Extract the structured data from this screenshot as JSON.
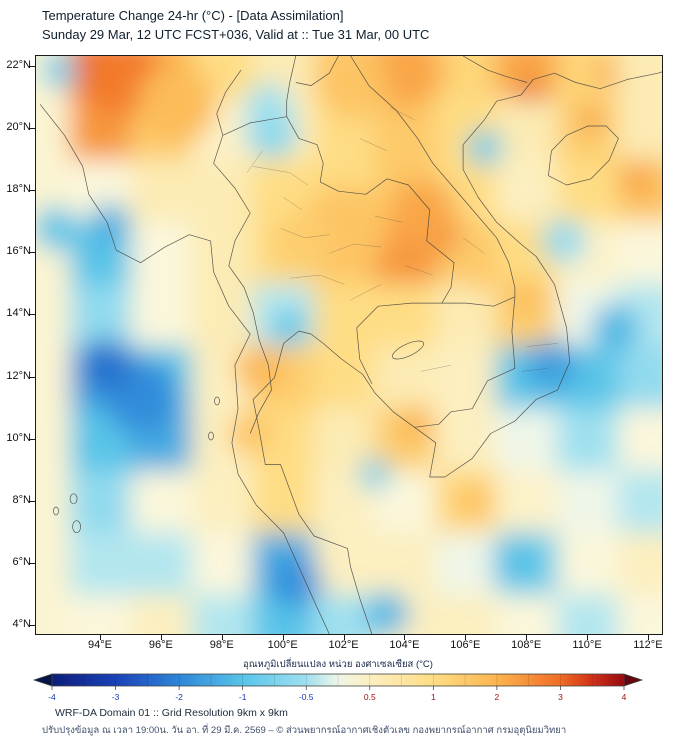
{
  "header": {
    "title": "Temperature Change 24-hr (°C) - [Data Assimilation]",
    "subtitle": "Sunday 29 Mar, 12 UTC FCST+036, Valid at :: Tue 31 Mar, 00 UTC"
  },
  "axes": {
    "lat_labels": [
      "22°N",
      "20°N",
      "18°N",
      "16°N",
      "14°N",
      "12°N",
      "10°N",
      "8°N",
      "6°N",
      "4°N"
    ],
    "lon_labels": [
      "94°E",
      "96°E",
      "98°E",
      "100°E",
      "102°E",
      "104°E",
      "106°E",
      "108°E",
      "110°E",
      "112°E"
    ]
  },
  "colorbar": {
    "title": "อุณหภูมิเปลี่ยนแปลง หน่วย องศาเซลเซียส (°C)",
    "tick_values": [
      -4,
      -3,
      -2,
      -1,
      -0.5,
      0.5,
      1,
      2,
      3,
      4
    ],
    "tick_labels": [
      "-4",
      "-3",
      "-2",
      "-1",
      "-0.5",
      "0.5",
      "1",
      "2",
      "3",
      "4"
    ],
    "min": -4,
    "max": 4,
    "negative_label_color": "#1535b5",
    "positive_label_color": "#a01010",
    "stops": [
      [
        -4,
        "#0b1e7a"
      ],
      [
        -3,
        "#1a41b8"
      ],
      [
        -2,
        "#2d86d8"
      ],
      [
        -1,
        "#58c4e8"
      ],
      [
        -0.5,
        "#9fe0ef"
      ],
      [
        -0.15,
        "#e2f4f0"
      ],
      [
        0.15,
        "#fbf8e0"
      ],
      [
        0.5,
        "#fcefc0"
      ],
      [
        1,
        "#fedd84"
      ],
      [
        2,
        "#fcb44e"
      ],
      [
        3,
        "#ef6c24"
      ],
      [
        3.5,
        "#d03018"
      ],
      [
        4,
        "#960b12"
      ]
    ]
  },
  "footer": {
    "line1": "WRF-DA Domain 01 :: Grid Resolution 9km x 9km",
    "line2": "ปรับปรุงข้อมูล ณ เวลา 19:00น. วัน อา. ที่ 29 มี.ค. 2569 – © ส่วนพยากรณ์อากาศเชิงตัวเลข กองพยากรณ์อากาศ กรมอุตุนิยมวิทยา"
  },
  "chart_data": {
    "type": "heatmap",
    "title": "Temperature Change 24-hr (°C) - [Data Assimilation]",
    "units": "°C",
    "value_range": [
      -4,
      4
    ],
    "x_name": "longitude_degE",
    "y_name": "latitude_degN",
    "x": [
      94,
      96,
      98,
      100,
      102,
      104,
      106,
      108,
      110,
      112
    ],
    "y": [
      22,
      20,
      18,
      16,
      14,
      12,
      10,
      8,
      6,
      4
    ],
    "values": [
      [
        3.0,
        2.0,
        1.0,
        0.6,
        1.5,
        2.0,
        1.2,
        2.2,
        1.2,
        0.6
      ],
      [
        2.4,
        1.4,
        0.4,
        0.5,
        1.0,
        1.5,
        1.0,
        0.6,
        1.4,
        0.6
      ],
      [
        0.2,
        0.6,
        0.6,
        1.0,
        1.0,
        1.5,
        1.0,
        0.5,
        1.0,
        1.6
      ],
      [
        -1.0,
        0.2,
        0.6,
        1.0,
        1.5,
        2.4,
        1.5,
        1.0,
        0.4,
        0.2
      ],
      [
        -0.6,
        0.2,
        0.6,
        -0.4,
        1.0,
        1.0,
        0.6,
        1.4,
        0.0,
        -0.4
      ],
      [
        -1.6,
        -1.0,
        0.5,
        1.4,
        1.0,
        0.6,
        0.5,
        -1.0,
        -1.0,
        -0.6
      ],
      [
        -1.0,
        -1.4,
        0.5,
        1.0,
        0.6,
        1.4,
        0.5,
        0.0,
        -0.5,
        0.2
      ],
      [
        -0.6,
        0.2,
        0.5,
        1.0,
        0.5,
        0.2,
        1.2,
        0.4,
        0.0,
        -0.4
      ],
      [
        -0.4,
        -0.4,
        0.2,
        -1.4,
        0.5,
        0.5,
        0.0,
        -0.9,
        0.2,
        0.5
      ],
      [
        0.2,
        0.5,
        -0.4,
        -1.0,
        -0.5,
        0.5,
        0.5,
        0.2,
        -0.4,
        0.2
      ]
    ],
    "hotspot_format": "[lon_degE, lat_degN, value_degC, radius_px]",
    "hotspots": [
      [
        95.2,
        21.5,
        3.8,
        22
      ],
      [
        94.8,
        21.7,
        2.8,
        40
      ],
      [
        96.5,
        20.8,
        1.8,
        40
      ],
      [
        104.0,
        21.9,
        2.2,
        38
      ],
      [
        102.3,
        21.4,
        1.6,
        34
      ],
      [
        108.1,
        21.2,
        3.2,
        11
      ],
      [
        110.6,
        21.8,
        2.6,
        10
      ],
      [
        110.1,
        20.3,
        2.4,
        12
      ],
      [
        111.6,
        18.4,
        2.2,
        18
      ],
      [
        105.1,
        16.7,
        3.0,
        20
      ],
      [
        104.6,
        17.3,
        2.2,
        34
      ],
      [
        102.0,
        16.8,
        1.6,
        44
      ],
      [
        100.5,
        16.3,
        1.4,
        30
      ],
      [
        106.5,
        15.4,
        1.5,
        20
      ],
      [
        99.2,
        12.3,
        1.9,
        24
      ],
      [
        98.9,
        10.2,
        1.6,
        22
      ],
      [
        104.3,
        10.5,
        2.0,
        18
      ],
      [
        106.3,
        8.0,
        1.9,
        14
      ],
      [
        107.9,
        14.6,
        1.8,
        18
      ],
      [
        94.3,
        16.9,
        -1.3,
        22
      ],
      [
        92.5,
        16.8,
        -1.0,
        22
      ],
      [
        95.3,
        11.4,
        -1.9,
        38
      ],
      [
        94.2,
        12.4,
        -2.3,
        26
      ],
      [
        100.2,
        13.6,
        -1.0,
        18
      ],
      [
        100.4,
        5.4,
        -1.8,
        26
      ],
      [
        103.4,
        4.4,
        -1.2,
        22
      ],
      [
        108.8,
        12.4,
        -1.6,
        26
      ],
      [
        110.9,
        13.6,
        -1.2,
        24
      ],
      [
        99.6,
        19.9,
        -0.7,
        26
      ],
      [
        99.5,
        20.7,
        -0.5,
        24
      ],
      [
        106.6,
        19.4,
        -0.9,
        18
      ],
      [
        109.2,
        16.4,
        -0.6,
        22
      ],
      [
        92.6,
        21.9,
        -0.8,
        18
      ],
      [
        107.5,
        6.1,
        -1.1,
        20
      ],
      [
        103.0,
        8.9,
        -0.8,
        16
      ]
    ],
    "lon_extent": [
      91.9,
      112.5
    ],
    "lat_extent": [
      3.7,
      22.35
    ],
    "legend_position": "bottom"
  }
}
